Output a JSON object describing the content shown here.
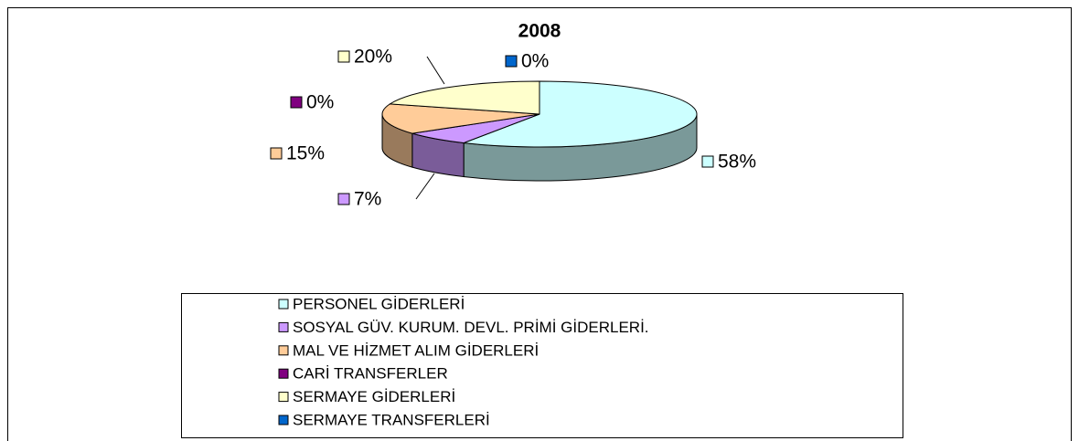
{
  "chart_data": {
    "type": "pie3d",
    "title": "2008",
    "categories": [
      "PERSONEL GİDERLERİ",
      "SOSYAL GÜV. KURUM. DEVL. PRİMİ GİDERLERİ.",
      "MAL VE HİZMET ALIM GİDERLERİ",
      "CARİ TRANSFERLER",
      "SERMAYE GİDERLERİ",
      "SERMAYE TRANSFERLERİ"
    ],
    "values": [
      58,
      7,
      15,
      0,
      20,
      0
    ],
    "value_labels": [
      "58%",
      "7%",
      "15%",
      "0%",
      "20%",
      "0%"
    ],
    "colors": [
      "#ccffff",
      "#cc99ff",
      "#ffcc99",
      "#800080",
      "#ffffcc",
      "#0066cc"
    ],
    "legend": "bottom"
  }
}
